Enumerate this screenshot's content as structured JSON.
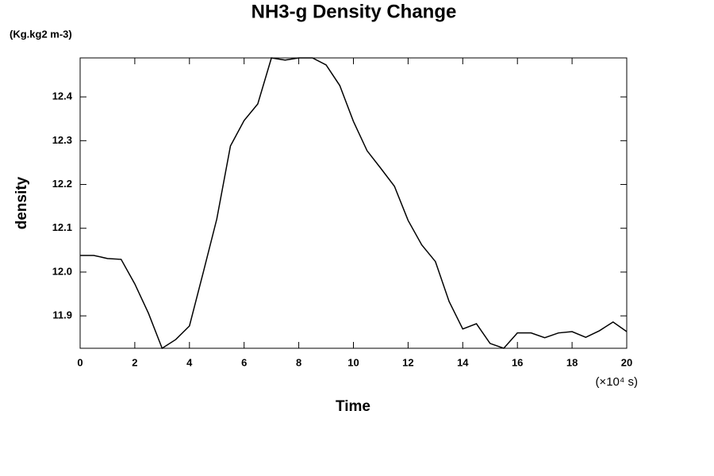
{
  "chart_data": {
    "type": "line",
    "title": "NH3-g Density Change",
    "unit_label": "(Kg.kg2 m-3)",
    "y_label": "density",
    "x_label": "Time",
    "x_unit_label": "(×10⁴ s)",
    "x": [
      0,
      0.5,
      1,
      1.5,
      2,
      2.5,
      3,
      3.5,
      4,
      4.5,
      5,
      5.5,
      6,
      6.5,
      7,
      7.5,
      8,
      8.5,
      9,
      9.5,
      10,
      10.5,
      11,
      11.5,
      12,
      12.5,
      13,
      13.5,
      14,
      14.5,
      15,
      15.5,
      16,
      16.5,
      17,
      17.5,
      18,
      18.5,
      19,
      19.5,
      20
    ],
    "series": [
      {
        "color": "#000000",
        "values": [
          12.038,
          12.038,
          12.031,
          12.029,
          11.973,
          11.906,
          11.826,
          11.846,
          11.877,
          11.998,
          12.121,
          12.288,
          12.346,
          12.384,
          12.489,
          12.484,
          12.489,
          12.489,
          12.473,
          12.426,
          12.344,
          12.277,
          12.237,
          12.196,
          12.118,
          12.062,
          12.024,
          11.933,
          11.87,
          11.882,
          11.837,
          11.826,
          11.861,
          11.861,
          11.85,
          11.861,
          11.864,
          11.851,
          11.866,
          11.886,
          11.864
        ]
      }
    ],
    "xlim": [
      0,
      20
    ],
    "xticks": [
      0,
      2,
      4,
      6,
      8,
      10,
      12,
      14,
      16,
      18,
      20
    ],
    "ylim": [
      11.826,
      12.489
    ],
    "yticks": [
      11.9,
      {
        "value": 12,
        "label": "12.0"
      },
      12.1,
      12.2,
      12.3,
      12.4
    ],
    "grid": false
  }
}
